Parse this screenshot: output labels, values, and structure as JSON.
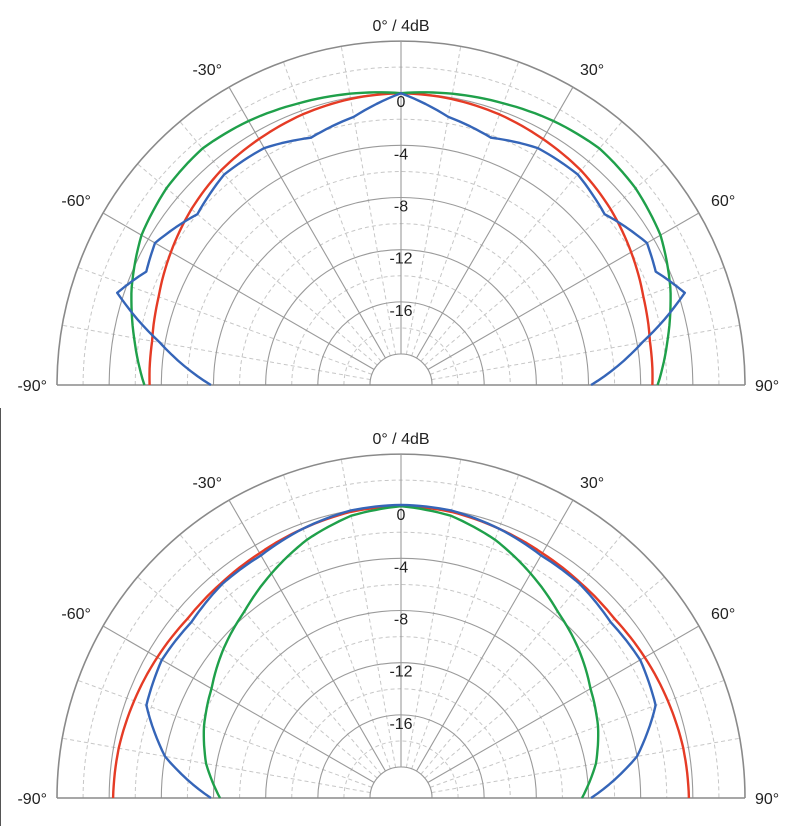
{
  "chart_data": [
    {
      "type": "polar",
      "title": "0° / 4dB",
      "angle_range_deg": [
        -90,
        90
      ],
      "radial_range_db": [
        -20,
        4
      ],
      "radial_ticks": [
        "0",
        "-4",
        "-8",
        "-12",
        "-16"
      ],
      "radial_tick_values": [
        0,
        -4,
        -8,
        -12,
        -16
      ],
      "angle_ticks": [
        "-90°",
        "-60°",
        "-30°",
        "30°",
        "60°",
        "90°"
      ],
      "angle_tick_values": [
        -90,
        -60,
        -30,
        30,
        60,
        90
      ],
      "grid": true,
      "series": [
        {
          "color": "#e53b25",
          "angles": [
            -90,
            -80,
            -70,
            -60,
            -50,
            -40,
            -30,
            -20,
            -10,
            0,
            10,
            20,
            30,
            40,
            50,
            60,
            70,
            80,
            90
          ],
          "values": [
            -3.1,
            -3.0,
            -2.6,
            -2.0,
            -1.4,
            -0.9,
            -0.6,
            -0.3,
            -0.1,
            0.0,
            -0.1,
            -0.3,
            -0.6,
            -0.9,
            -1.4,
            -2.0,
            -2.6,
            -3.0,
            -3.1
          ]
        },
        {
          "color": "#1fa04a",
          "angles": [
            -90,
            -80,
            -70,
            -60,
            -50,
            -40,
            -30,
            -20,
            -10,
            0,
            10,
            20,
            30,
            40,
            50,
            60,
            70,
            80,
            90
          ],
          "values": [
            -2.7,
            -1.6,
            -0.4,
            0.6,
            1.1,
            1.3,
            1.0,
            0.6,
            0.3,
            0.0,
            0.3,
            0.6,
            1.0,
            1.3,
            1.1,
            0.6,
            -0.4,
            -1.6,
            -2.7
          ]
        },
        {
          "color": "#3565b8",
          "angles": [
            -90,
            -80,
            -72,
            -66,
            -60,
            -50,
            -40,
            -30,
            -20,
            -10,
            0,
            10,
            20,
            30,
            40,
            50,
            60,
            66,
            72,
            80,
            90
          ],
          "values": [
            -7.8,
            -3.6,
            0.5,
            -1.0,
            -0.6,
            -2.0,
            -1.3,
            -1.4,
            -2.2,
            -1.5,
            0.0,
            -1.5,
            -2.2,
            -1.4,
            -1.3,
            -2.0,
            -0.6,
            -1.0,
            0.5,
            -3.6,
            -7.8
          ]
        }
      ]
    },
    {
      "type": "polar",
      "title": "0° / 4dB",
      "angle_range_deg": [
        -90,
        90
      ],
      "radial_range_db": [
        -20,
        4
      ],
      "radial_ticks": [
        "0",
        "-4",
        "-8",
        "-12",
        "-16"
      ],
      "radial_tick_values": [
        0,
        -4,
        -8,
        -12,
        -16
      ],
      "angle_ticks": [
        "-90°",
        "-60°",
        "-30°",
        "30°",
        "60°",
        "90°"
      ],
      "angle_tick_values": [
        -90,
        -60,
        -30,
        30,
        60,
        90
      ],
      "grid": true,
      "series": [
        {
          "color": "#e53b25",
          "angles": [
            -90,
            -80,
            -70,
            -60,
            -50,
            -40,
            -30,
            -20,
            -10,
            0,
            10,
            20,
            30,
            40,
            50,
            60,
            70,
            80,
            90
          ],
          "values": [
            -0.3,
            -0.4,
            -0.6,
            -0.8,
            -1.0,
            -0.9,
            -0.7,
            -0.4,
            -0.1,
            0.0,
            -0.1,
            -0.4,
            -0.7,
            -0.9,
            -1.0,
            -0.8,
            -0.6,
            -0.4,
            -0.3
          ]
        },
        {
          "color": "#1fa04a",
          "angles": [
            -90,
            -80,
            -70,
            -60,
            -50,
            -40,
            -30,
            -20,
            -10,
            0,
            10,
            20,
            30,
            40,
            50,
            60,
            70,
            80,
            90
          ],
          "values": [
            -8.5,
            -7.2,
            -6.3,
            -5.6,
            -4.6,
            -3.7,
            -2.5,
            -1.3,
            -0.4,
            0.0,
            -0.4,
            -1.3,
            -2.5,
            -3.7,
            -4.6,
            -5.6,
            -6.3,
            -7.2,
            -8.5
          ]
        },
        {
          "color": "#3565b8",
          "angles": [
            -90,
            -80,
            -70,
            -60,
            -50,
            -40,
            -30,
            -20,
            -10,
            0,
            10,
            20,
            30,
            40,
            50,
            60,
            70,
            80,
            90
          ],
          "values": [
            -7.8,
            -4.0,
            -1.6,
            -1.2,
            -1.4,
            -1.0,
            -0.9,
            -0.4,
            0.0,
            0.1,
            0.0,
            -0.4,
            -0.9,
            -1.0,
            -1.4,
            -1.2,
            -1.6,
            -4.0,
            -7.8
          ]
        }
      ]
    }
  ]
}
